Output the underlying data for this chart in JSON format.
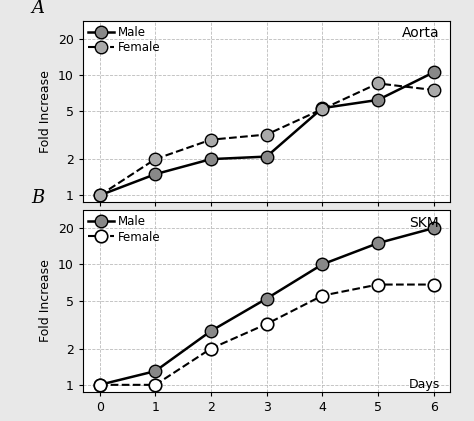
{
  "panel_A": {
    "label": "A",
    "title": "Aorta",
    "male_x": [
      0,
      1,
      2,
      3,
      4,
      5,
      6
    ],
    "male_y": [
      1,
      1.5,
      2.0,
      2.1,
      5.3,
      6.2,
      10.5
    ],
    "female_x": [
      0,
      1,
      2,
      3,
      4,
      5,
      6
    ],
    "female_y": [
      1,
      2.0,
      2.9,
      3.2,
      5.2,
      8.5,
      7.5
    ]
  },
  "panel_B": {
    "label": "B",
    "title": "SKM",
    "male_x": [
      0,
      1,
      2,
      3,
      4,
      5,
      6
    ],
    "male_y": [
      1,
      1.3,
      2.8,
      5.2,
      10.0,
      15.0,
      20.0
    ],
    "female_x": [
      0,
      1,
      2,
      3,
      4,
      5,
      6
    ],
    "female_y": [
      1,
      1.0,
      2.0,
      3.2,
      5.5,
      6.8,
      6.8
    ]
  },
  "male_color": "#888888",
  "female_color_A": "#aaaaaa",
  "male_linestyle": "-",
  "female_linestyle": "--",
  "male_label": "Male",
  "female_label": "Female",
  "male_lw": 1.8,
  "female_lw": 1.5,
  "male_ms": 9,
  "female_ms": 9,
  "yticks": [
    1,
    2,
    5,
    10,
    20
  ],
  "xticks": [
    0,
    1,
    2,
    3,
    4,
    5,
    6
  ],
  "xlabel": "Days",
  "ylabel": "Fold Increase",
  "grid_color": "#bbbbbb",
  "bg_color": "#ffffff",
  "outer_bg": "#e8e8e8",
  "panel_label_fontsize": 13,
  "title_fontsize": 10,
  "tick_fontsize": 9,
  "legend_fontsize": 8.5,
  "ylabel_fontsize": 9
}
